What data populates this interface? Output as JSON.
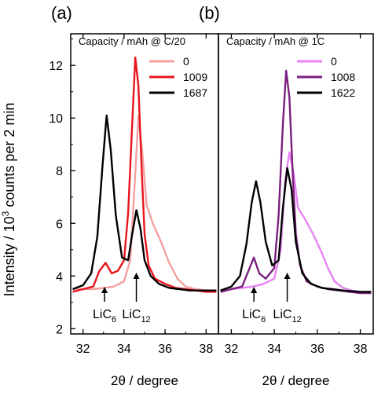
{
  "ylabel_main": "Intensity / 10",
  "ylabel_sup": "3",
  "ylabel_rest": " counts per 2 min",
  "chart_data": [
    {
      "type": "line",
      "panel_label": "(a)",
      "legend_title": "Capacity / mAh @ C/20",
      "xlabel": "2θ / degree",
      "ylabel": "Intensity / 10^3 counts per 2 min",
      "xlim": [
        31.4,
        38.6
      ],
      "ylim": [
        1.8,
        13.2
      ],
      "xticks": [
        32,
        34,
        36,
        38
      ],
      "yticks": [
        2,
        4,
        6,
        8,
        10,
        12
      ],
      "grid": false,
      "legend_position": "top-right",
      "annotations": [
        {
          "main": "LiC",
          "sub": "6",
          "x": 33.05
        },
        {
          "main": "LiC",
          "sub": "12",
          "x": 34.6
        }
      ],
      "series": [
        {
          "name": "0",
          "color": "#f4a0a0",
          "x": [
            31.5,
            32,
            32.5,
            33,
            33.5,
            34,
            34.3,
            34.5,
            34.7,
            34.9,
            35.1,
            35.4,
            35.8,
            36.2,
            36.6,
            37,
            37.5,
            38,
            38.5
          ],
          "y": [
            3.5,
            3.5,
            3.5,
            3.55,
            3.6,
            3.8,
            4.6,
            7.2,
            10.1,
            8.6,
            6.7,
            6.0,
            5.3,
            4.5,
            3.9,
            3.6,
            3.5,
            3.45,
            3.45
          ]
        },
        {
          "name": "1009",
          "color": "#e8141c",
          "x": [
            31.5,
            32,
            32.5,
            32.8,
            33.1,
            33.4,
            33.7,
            34,
            34.2,
            34.4,
            34.55,
            34.7,
            34.85,
            35,
            35.2,
            35.5,
            36,
            36.5,
            37,
            37.5,
            38,
            38.5
          ],
          "y": [
            3.4,
            3.5,
            3.6,
            4.2,
            4.5,
            4.1,
            4.2,
            4.6,
            6.4,
            9.8,
            12.3,
            11.2,
            8.2,
            5.6,
            4.4,
            3.9,
            3.7,
            3.55,
            3.5,
            3.45,
            3.4,
            3.4
          ]
        },
        {
          "name": "1687",
          "color": "#000000",
          "x": [
            31.5,
            32,
            32.4,
            32.7,
            32.95,
            33.15,
            33.35,
            33.6,
            33.9,
            34.2,
            34.4,
            34.6,
            34.8,
            35,
            35.3,
            35.7,
            36.2,
            36.7,
            37.2,
            38,
            38.5
          ],
          "y": [
            3.5,
            3.65,
            4.1,
            5.5,
            8.2,
            10.1,
            8.8,
            6.3,
            4.7,
            4.6,
            5.6,
            6.5,
            5.8,
            4.6,
            4.0,
            3.7,
            3.55,
            3.5,
            3.45,
            3.45,
            3.45
          ]
        }
      ]
    },
    {
      "type": "line",
      "panel_label": "(b)",
      "legend_title": "Capacity / mAh @ 1C",
      "xlabel": "2θ / degree",
      "ylabel": "",
      "xlim": [
        31.4,
        38.6
      ],
      "ylim": [
        1.8,
        13.2
      ],
      "xticks": [
        32,
        34,
        36,
        38
      ],
      "yticks": [],
      "grid": false,
      "legend_position": "top-right",
      "annotations": [
        {
          "main": "LiC",
          "sub": "6",
          "x": 33.05
        },
        {
          "main": "LiC",
          "sub": "12",
          "x": 34.6
        }
      ],
      "series": [
        {
          "name": "0",
          "color": "#e882f5",
          "x": [
            31.5,
            32,
            32.5,
            33,
            33.5,
            34,
            34.3,
            34.5,
            34.7,
            34.9,
            35.1,
            35.4,
            35.8,
            36.2,
            36.5,
            36.8,
            37.2,
            37.6,
            38,
            38.5
          ],
          "y": [
            3.4,
            3.5,
            3.55,
            3.6,
            3.7,
            3.9,
            5.0,
            7.6,
            8.7,
            7.9,
            6.6,
            6.2,
            5.6,
            4.9,
            4.3,
            3.8,
            3.55,
            3.45,
            3.4,
            3.4
          ]
        },
        {
          "name": "1008",
          "color": "#7a1f7f",
          "x": [
            31.5,
            32,
            32.5,
            32.8,
            33.05,
            33.3,
            33.6,
            34,
            34.2,
            34.4,
            34.55,
            34.7,
            34.85,
            35,
            35.2,
            35.5,
            36,
            36.5,
            37,
            37.5,
            38,
            38.5
          ],
          "y": [
            3.4,
            3.5,
            3.6,
            4.2,
            4.7,
            4.1,
            3.9,
            4.3,
            6.3,
            9.8,
            11.8,
            10.8,
            8.0,
            5.6,
            4.4,
            3.8,
            3.6,
            3.5,
            3.45,
            3.4,
            3.35,
            3.35
          ]
        },
        {
          "name": "1622",
          "color": "#000000",
          "x": [
            31.5,
            32,
            32.4,
            32.7,
            32.95,
            33.15,
            33.35,
            33.6,
            33.9,
            34.2,
            34.4,
            34.6,
            34.8,
            35,
            35.3,
            35.7,
            36.2,
            36.7,
            37.2,
            38,
            38.5
          ],
          "y": [
            3.45,
            3.6,
            4.0,
            5.2,
            6.8,
            7.6,
            6.8,
            5.3,
            4.4,
            4.6,
            6.6,
            8.1,
            7.3,
            5.3,
            4.1,
            3.7,
            3.55,
            3.5,
            3.45,
            3.4,
            3.4
          ]
        }
      ]
    }
  ]
}
